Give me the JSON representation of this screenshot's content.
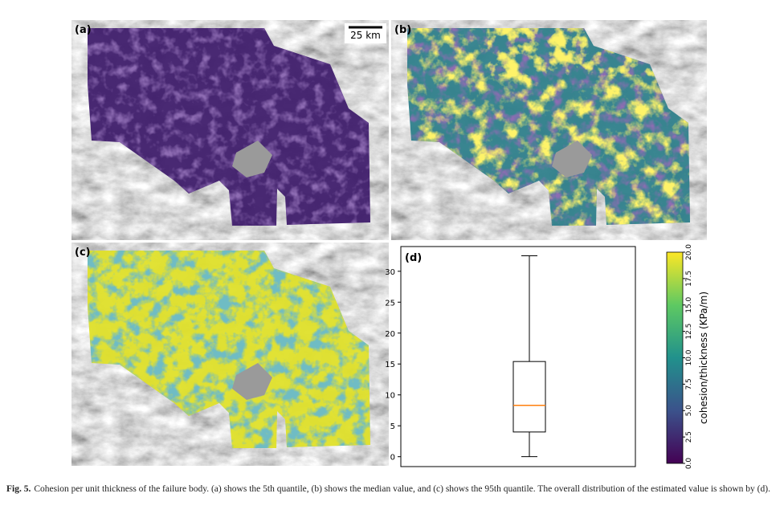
{
  "panels": [
    {
      "label": "(a)"
    },
    {
      "label": "(b)"
    },
    {
      "label": "(c)"
    }
  ],
  "scale_bar": "25 km",
  "chart_data": {
    "type": "box",
    "label": "(d)",
    "whisker_low": 0,
    "q1": 4,
    "median": 8.3,
    "q3": 15.4,
    "whisker_high": 32.5,
    "color": "#000000",
    "median_color": "#ff7f0e",
    "ylim": [
      -1.6,
      34
    ],
    "yticks": [
      0,
      5,
      10,
      15,
      20,
      25,
      30
    ]
  },
  "colorbar": {
    "label": "cohesion/thickness (KPa/m)",
    "lim": [
      0,
      20
    ],
    "ticks": [
      {
        "value": 0,
        "label": "0.0"
      },
      2.5,
      {
        "value": 5,
        "label": "5.0"
      },
      7.5,
      {
        "value": 10,
        "label": "10.0"
      },
      12.5,
      {
        "value": 15,
        "label": "15.0"
      },
      17.5,
      {
        "value": 20,
        "label": "20.0"
      }
    ]
  },
  "caption": {
    "label": "Fig. 5.",
    "text": "Cohesion per unit thickness of the failure body. (a) shows the 5th quantile, (b) shows the median value, and (c) shows the 95th quantile. The overall distribution of the estimated value is shown by (d)."
  }
}
